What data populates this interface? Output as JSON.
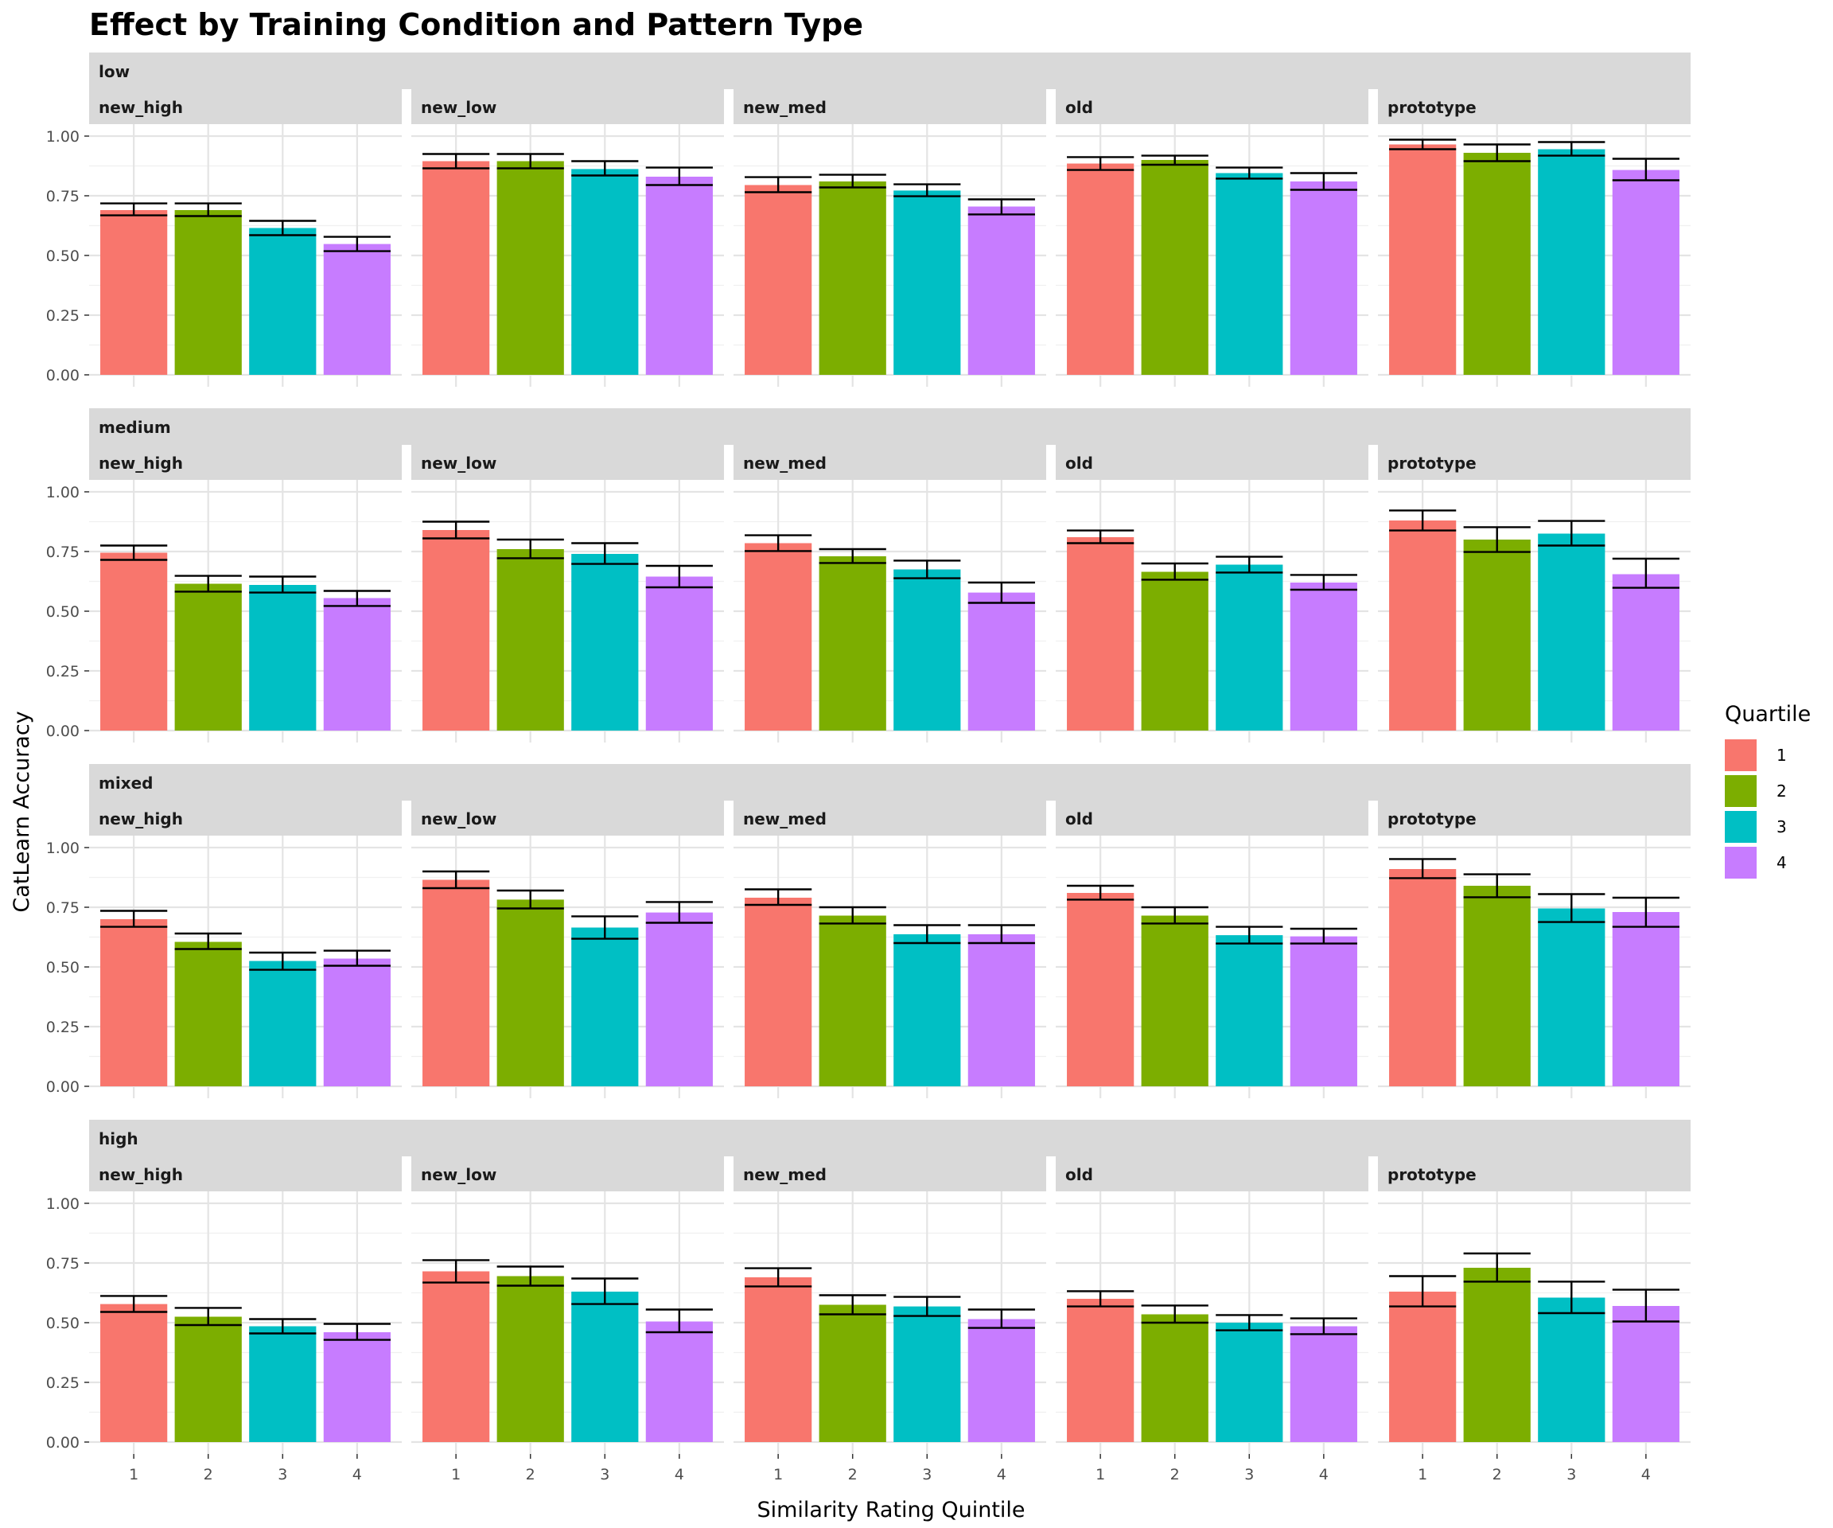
{
  "chart_data": {
    "type": "bar",
    "title": "Effect by Training Condition and Pattern Type",
    "xlabel": "Similarity Rating Quintile",
    "ylabel": "CatLearn Accuracy",
    "categories": [
      "1",
      "2",
      "3",
      "4"
    ],
    "ylim": [
      0,
      1
    ],
    "yticks": [
      "0.00",
      "0.25",
      "0.50",
      "0.75",
      "1.00"
    ],
    "legend": {
      "title": "Quartile",
      "position": "right",
      "entries": [
        "1",
        "2",
        "3",
        "4"
      ],
      "colors": [
        "#F8766D",
        "#7CAE00",
        "#00BFC4",
        "#C77CFF"
      ]
    },
    "rows": [
      {
        "condition": "low",
        "panels": [
          {
            "pattern": "new_high",
            "values": [
              0.69,
              0.69,
              0.615,
              0.548
            ],
            "err": [
              [
                0.668,
                0.718
              ],
              [
                0.665,
                0.718
              ],
              [
                0.585,
                0.645
              ],
              [
                0.518,
                0.578
              ]
            ]
          },
          {
            "pattern": "new_low",
            "values": [
              0.895,
              0.895,
              0.862,
              0.83
            ],
            "err": [
              [
                0.865,
                0.925
              ],
              [
                0.865,
                0.925
              ],
              [
                0.835,
                0.895
              ],
              [
                0.795,
                0.868
              ]
            ]
          },
          {
            "pattern": "new_med",
            "values": [
              0.795,
              0.81,
              0.772,
              0.705
            ],
            "err": [
              [
                0.765,
                0.828
              ],
              [
                0.785,
                0.838
              ],
              [
                0.748,
                0.798
              ],
              [
                0.672,
                0.735
              ]
            ]
          },
          {
            "pattern": "old",
            "values": [
              0.885,
              0.9,
              0.845,
              0.81
            ],
            "err": [
              [
                0.858,
                0.912
              ],
              [
                0.88,
                0.918
              ],
              [
                0.822,
                0.868
              ],
              [
                0.775,
                0.845
              ]
            ]
          },
          {
            "pattern": "prototype",
            "values": [
              0.965,
              0.93,
              0.945,
              0.858
            ],
            "err": [
              [
                0.945,
                0.985
              ],
              [
                0.895,
                0.965
              ],
              [
                0.918,
                0.975
              ],
              [
                0.815,
                0.905
              ]
            ]
          }
        ]
      },
      {
        "condition": "medium",
        "panels": [
          {
            "pattern": "new_high",
            "values": [
              0.745,
              0.615,
              0.61,
              0.555
            ],
            "err": [
              [
                0.715,
                0.775
              ],
              [
                0.582,
                0.648
              ],
              [
                0.578,
                0.645
              ],
              [
                0.522,
                0.585
              ]
            ]
          },
          {
            "pattern": "new_low",
            "values": [
              0.84,
              0.76,
              0.74,
              0.645
            ],
            "err": [
              [
                0.805,
                0.875
              ],
              [
                0.722,
                0.8
              ],
              [
                0.698,
                0.785
              ],
              [
                0.6,
                0.69
              ]
            ]
          },
          {
            "pattern": "new_med",
            "values": [
              0.785,
              0.73,
              0.675,
              0.578
            ],
            "err": [
              [
                0.752,
                0.818
              ],
              [
                0.702,
                0.76
              ],
              [
                0.638,
                0.712
              ],
              [
                0.535,
                0.62
              ]
            ]
          },
          {
            "pattern": "old",
            "values": [
              0.81,
              0.665,
              0.695,
              0.62
            ],
            "err": [
              [
                0.785,
                0.838
              ],
              [
                0.632,
                0.7
              ],
              [
                0.662,
                0.728
              ],
              [
                0.59,
                0.652
              ]
            ]
          },
          {
            "pattern": "prototype",
            "values": [
              0.88,
              0.8,
              0.825,
              0.655
            ],
            "err": [
              [
                0.838,
                0.922
              ],
              [
                0.748,
                0.852
              ],
              [
                0.775,
                0.878
              ],
              [
                0.598,
                0.72
              ]
            ]
          }
        ]
      },
      {
        "condition": "mixed",
        "panels": [
          {
            "pattern": "new_high",
            "values": [
              0.7,
              0.605,
              0.525,
              0.535
            ],
            "err": [
              [
                0.668,
                0.735
              ],
              [
                0.575,
                0.64
              ],
              [
                0.488,
                0.56
              ],
              [
                0.505,
                0.568
              ]
            ]
          },
          {
            "pattern": "new_low",
            "values": [
              0.865,
              0.782,
              0.665,
              0.728
            ],
            "err": [
              [
                0.83,
                0.9
              ],
              [
                0.745,
                0.82
              ],
              [
                0.618,
                0.712
              ],
              [
                0.685,
                0.772
              ]
            ]
          },
          {
            "pattern": "new_med",
            "values": [
              0.79,
              0.715,
              0.637,
              0.637
            ],
            "err": [
              [
                0.76,
                0.825
              ],
              [
                0.682,
                0.75
              ],
              [
                0.6,
                0.675
              ],
              [
                0.6,
                0.675
              ]
            ]
          },
          {
            "pattern": "old",
            "values": [
              0.81,
              0.715,
              0.633,
              0.628
            ],
            "err": [
              [
                0.782,
                0.84
              ],
              [
                0.682,
                0.75
              ],
              [
                0.598,
                0.668
              ],
              [
                0.598,
                0.66
              ]
            ]
          },
          {
            "pattern": "prototype",
            "values": [
              0.91,
              0.84,
              0.745,
              0.73
            ],
            "err": [
              [
                0.872,
                0.952
              ],
              [
                0.792,
                0.888
              ],
              [
                0.688,
                0.805
              ],
              [
                0.668,
                0.79
              ]
            ]
          }
        ]
      },
      {
        "condition": "high",
        "panels": [
          {
            "pattern": "new_high",
            "values": [
              0.578,
              0.525,
              0.485,
              0.46
            ],
            "err": [
              [
                0.545,
                0.612
              ],
              [
                0.49,
                0.562
              ],
              [
                0.455,
                0.515
              ],
              [
                0.428,
                0.495
              ]
            ]
          },
          {
            "pattern": "new_low",
            "values": [
              0.715,
              0.695,
              0.63,
              0.505
            ],
            "err": [
              [
                0.668,
                0.762
              ],
              [
                0.655,
                0.735
              ],
              [
                0.578,
                0.685
              ],
              [
                0.46,
                0.555
              ]
            ]
          },
          {
            "pattern": "new_med",
            "values": [
              0.69,
              0.575,
              0.568,
              0.515
            ],
            "err": [
              [
                0.652,
                0.728
              ],
              [
                0.535,
                0.615
              ],
              [
                0.528,
                0.608
              ],
              [
                0.478,
                0.555
              ]
            ]
          },
          {
            "pattern": "old",
            "values": [
              0.6,
              0.535,
              0.5,
              0.485
            ],
            "err": [
              [
                0.568,
                0.632
              ],
              [
                0.5,
                0.572
              ],
              [
                0.468,
                0.532
              ],
              [
                0.452,
                0.518
              ]
            ]
          },
          {
            "pattern": "prototype",
            "values": [
              0.63,
              0.73,
              0.605,
              0.57
            ],
            "err": [
              [
                0.568,
                0.695
              ],
              [
                0.672,
                0.79
              ],
              [
                0.54,
                0.672
              ],
              [
                0.505,
                0.638
              ]
            ]
          }
        ]
      }
    ]
  }
}
